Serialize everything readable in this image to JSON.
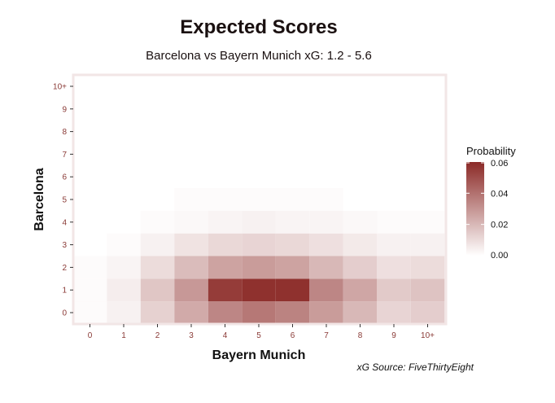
{
  "chart_data": {
    "type": "heatmap",
    "title": "Expected Scores",
    "subtitle": "Barcelona vs Bayern Munich xG: 1.2 - 5.6",
    "xlabel": "Bayern Munich",
    "ylabel": "Barcelona",
    "caption": "xG Source: FiveThirtyEight",
    "x_categories": [
      "0",
      "1",
      "2",
      "3",
      "4",
      "5",
      "6",
      "7",
      "8",
      "9",
      "10+"
    ],
    "y_categories": [
      "0",
      "1",
      "2",
      "3",
      "4",
      "5",
      "6",
      "7",
      "8",
      "9",
      "10+"
    ],
    "values": [
      [
        0.001,
        0.004,
        0.013,
        0.024,
        0.034,
        0.038,
        0.035,
        0.028,
        0.02,
        0.012,
        0.014
      ],
      [
        0.001,
        0.005,
        0.016,
        0.029,
        0.055,
        0.058,
        0.058,
        0.034,
        0.025,
        0.015,
        0.017
      ],
      [
        0.001,
        0.003,
        0.01,
        0.019,
        0.026,
        0.028,
        0.026,
        0.02,
        0.014,
        0.009,
        0.01
      ],
      [
        0.0,
        0.001,
        0.004,
        0.008,
        0.011,
        0.012,
        0.011,
        0.009,
        0.006,
        0.004,
        0.004
      ],
      [
        0.0,
        0.0,
        0.001,
        0.002,
        0.003,
        0.004,
        0.003,
        0.003,
        0.002,
        0.001,
        0.001
      ],
      [
        0.0,
        0.0,
        0.0,
        0.001,
        0.001,
        0.001,
        0.001,
        0.001,
        0.0,
        0.0,
        0.0
      ],
      [
        0.0,
        0.0,
        0.0,
        0.0,
        0.0,
        0.0,
        0.0,
        0.0,
        0.0,
        0.0,
        0.0
      ],
      [
        0.0,
        0.0,
        0.0,
        0.0,
        0.0,
        0.0,
        0.0,
        0.0,
        0.0,
        0.0,
        0.0
      ],
      [
        0.0,
        0.0,
        0.0,
        0.0,
        0.0,
        0.0,
        0.0,
        0.0,
        0.0,
        0.0,
        0.0
      ],
      [
        0.0,
        0.0,
        0.0,
        0.0,
        0.0,
        0.0,
        0.0,
        0.0,
        0.0,
        0.0,
        0.0
      ],
      [
        0.0,
        0.0,
        0.0,
        0.0,
        0.0,
        0.0,
        0.0,
        0.0,
        0.0,
        0.0,
        0.0
      ]
    ],
    "legend": {
      "title": "Probability",
      "ticks": [
        "0.00",
        "0.02",
        "0.04",
        "0.06"
      ],
      "tick_values": [
        0,
        0.02,
        0.04,
        0.06
      ],
      "range": [
        0,
        0.06
      ],
      "low_color": "#ffffff",
      "high_color": "#8b2a27"
    },
    "grid": false,
    "legend_position": "right"
  },
  "colors": {
    "panel_border": "#f2e6e6",
    "tick_text": "#8a3a36",
    "tick_mark": "#333333"
  }
}
